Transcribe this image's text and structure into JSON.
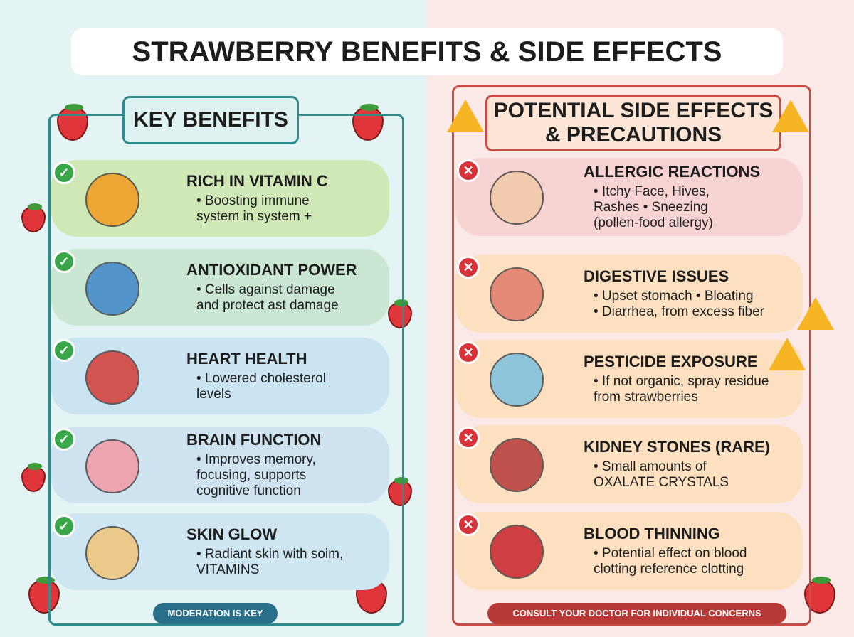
{
  "title": "STRAWBERRY BENEFITS & SIDE EFFECTS",
  "benefits": {
    "heading": "KEY BENEFITS",
    "items": [
      {
        "title": "RICH IN VITAMIN C",
        "lines": [
          "• Boosting immune",
          "system in system +"
        ]
      },
      {
        "title": "ANTIOXIDANT POWER",
        "lines": [
          "• Cells against damage",
          "and protect ast damage"
        ]
      },
      {
        "title": "HEART HEALTH",
        "lines": [
          "• Lowered cholesterol",
          "levels"
        ]
      },
      {
        "title": "BRAIN FUNCTION",
        "lines": [
          "• Improves memory,",
          "focusing, supports",
          "cognitive function"
        ]
      },
      {
        "title": "SKIN GLOW",
        "lines": [
          "• Radiant skin with soim,",
          "VITAMINS"
        ]
      }
    ],
    "footer": "MODERATION IS KEY"
  },
  "side_effects": {
    "heading": [
      "POTENTIAL SIDE EFFECTS",
      "& PRECAUTIONS"
    ],
    "items": [
      {
        "title": "ALLERGIC REACTIONS",
        "lines": [
          "• Itchy Face, Hives,",
          "Rashes • Sneezing",
          "(pollen-food allergy)"
        ]
      },
      {
        "title": "DIGESTIVE ISSUES",
        "lines": [
          "• Upset stomach  • Bloating",
          "• Diarrhea, from excess fiber"
        ]
      },
      {
        "title": "PESTICIDE EXPOSURE",
        "lines": [
          "• If not organic, spray residue",
          "from strawberries"
        ]
      },
      {
        "title": "KIDNEY STONES (RARE)",
        "lines": [
          "• Small amounts of",
          "OXALATE CRYSTALS"
        ]
      },
      {
        "title": "BLOOD THINNING",
        "lines": [
          "• Potential effect on blood",
          "clotting reference clotting"
        ]
      }
    ],
    "footer": "CONSULT YOUR DOCTOR FOR INDIVIDUAL CONCERNS"
  }
}
